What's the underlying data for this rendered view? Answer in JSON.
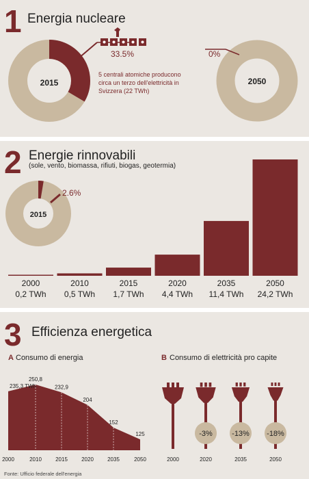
{
  "section1": {
    "number": "1",
    "title": "Energia nucleare",
    "share_2015": 0.335,
    "share_2015_label": "33.5%",
    "year_2015": "2015",
    "note": [
      "5 centrali atomiche producono",
      "circa un terzo dell'elettricità in",
      "Svizzera (22 TWh)"
    ],
    "share_2050_label": "0%",
    "year_2050": "2050",
    "plants": 5
  },
  "section2": {
    "number": "2",
    "title": "Energie rinnovabili",
    "subtitle": "(sole, vento, biomassa, rifiuti, biogas, geotermia)",
    "share_label": "2.6%",
    "share": 0.026,
    "year": "2015"
  },
  "section3": {
    "number": "3",
    "title": "Efficienza energetica",
    "chart_a_letter": "A",
    "chart_a_title": "Consumo di energia",
    "chart_b_letter": "B",
    "chart_b_title": "Consumo di elettricità pro capite"
  },
  "footer": "Fonte: Ufficio federale dell'energia",
  "colors": {
    "accent": "#7a2a2c",
    "beige": "#c9b9a0",
    "bg": "#ebe7e2"
  },
  "chart_data": [
    {
      "type": "bar",
      "categories": [
        "2000",
        "2010",
        "2015",
        "2020",
        "2035",
        "2050"
      ],
      "values": [
        0.2,
        0.5,
        1.7,
        4.4,
        11.4,
        24.2
      ],
      "value_labels": [
        "0,2 TWh",
        "0,5 TWh",
        "1,7 TWh",
        "4,4 TWh",
        "11,4 TWh",
        "24,2 TWh"
      ],
      "ylim": [
        0,
        24.2
      ]
    },
    {
      "type": "area",
      "x": [
        "2000",
        "2010",
        "2015",
        "2020",
        "2035",
        "2050"
      ],
      "values": [
        235.3,
        250.8,
        232.9,
        204,
        152,
        125
      ],
      "value_labels": [
        "235,3 TWh",
        "250,8",
        "232,9",
        "204",
        "152",
        "125"
      ]
    },
    {
      "type": "pictogram",
      "x": [
        "2000",
        "2020",
        "2035",
        "2050"
      ],
      "labels": [
        "",
        "-3%",
        "-13%",
        "-18%"
      ]
    }
  ]
}
